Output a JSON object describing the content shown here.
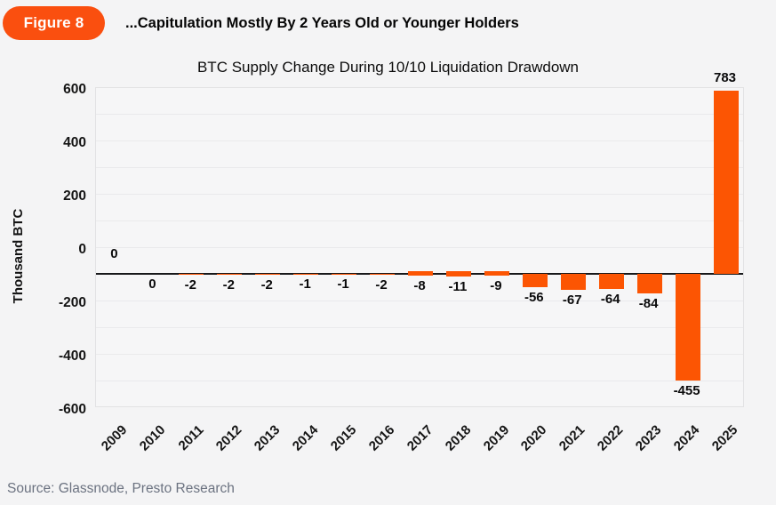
{
  "badge": {
    "label": "Figure 8"
  },
  "header": {
    "title": "...Capitulation Mostly By 2 Years Old or Younger Holders"
  },
  "footer": {
    "source": "Source: Glassnode, Presto Research"
  },
  "colors": {
    "accent": "#FA4F0F",
    "bar": "#FC5503",
    "zero_line": "#17181A",
    "grid": "#EAEAEC",
    "plot_border": "#E2E2E4",
    "source_text": "#6B7280",
    "background": "#F4F4F5"
  },
  "chart_data": {
    "type": "bar",
    "title": "BTC Supply Change During 10/10 Liquidation Drawdown",
    "ylabel": "Thousand BTC",
    "xlabel": "",
    "categories": [
      "2009",
      "2010",
      "2011",
      "2012",
      "2013",
      "2014",
      "2015",
      "2016",
      "2017",
      "2018",
      "2019",
      "2020",
      "2021",
      "2022",
      "2023",
      "2024",
      "2025"
    ],
    "values": [
      0,
      0,
      -2,
      -2,
      -2,
      -1,
      -1,
      -2,
      -8,
      -11,
      -9,
      -56,
      -67,
      -64,
      -84,
      -455,
      783
    ],
    "data_labels": [
      "0",
      "0",
      "-2",
      "-2",
      "-2",
      "-1",
      "-1",
      "-2",
      "-8",
      "-11",
      "-9",
      "-56",
      "-67",
      "-64",
      "-84",
      "-455",
      "783"
    ],
    "yticks": [
      600,
      400,
      200,
      0,
      -200,
      -400,
      -600
    ],
    "ylim": [
      -600,
      600
    ],
    "grid": "horizontal",
    "legend": "none",
    "bar_color": "#FC5503"
  }
}
